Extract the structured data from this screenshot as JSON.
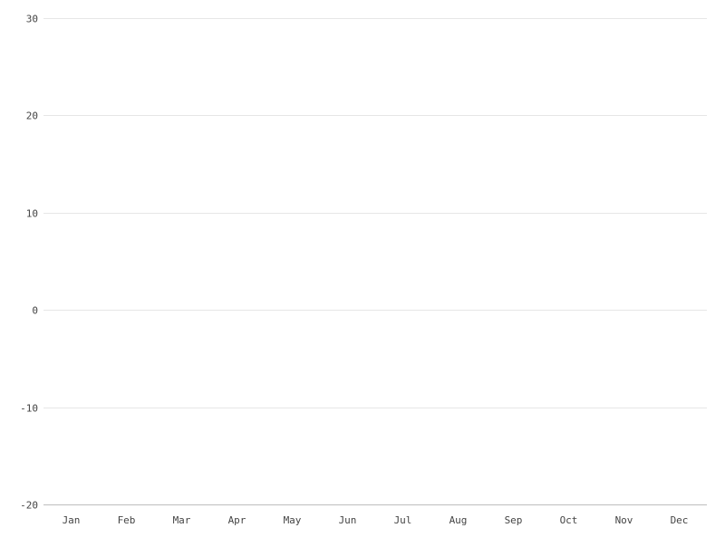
{
  "chart_data": {
    "type": "line",
    "title": "",
    "xlabel": "",
    "ylabel": "",
    "categories": [
      "Jan",
      "Feb",
      "Mar",
      "Apr",
      "May",
      "Jun",
      "Jul",
      "Aug",
      "Sep",
      "Oct",
      "Nov",
      "Dec"
    ],
    "y_ticks": [
      30,
      20,
      10,
      0,
      -10,
      -20
    ],
    "ylim": [
      -20,
      30
    ],
    "grid": true,
    "series": []
  }
}
